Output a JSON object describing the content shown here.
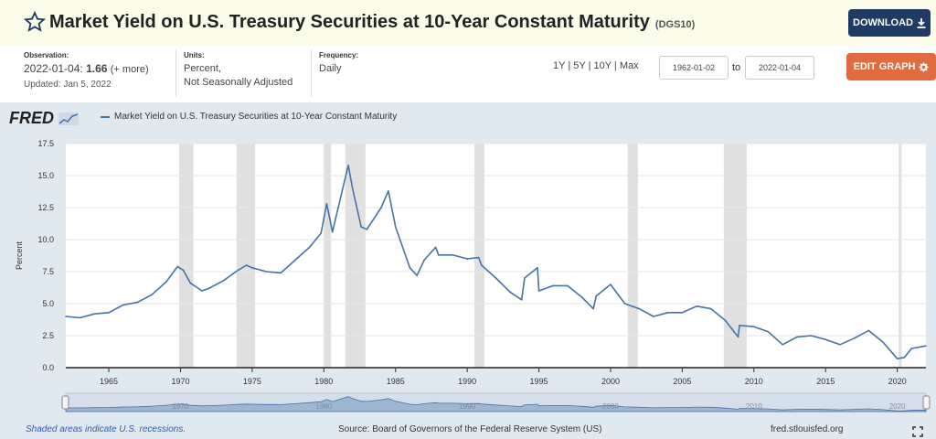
{
  "header": {
    "title": "Market Yield on U.S. Treasury Securities at 10-Year Constant Maturity",
    "series_id": "(DGS10)",
    "download_label": "DOWNLOAD",
    "icons": {
      "star": "star-icon",
      "download": "download-icon"
    }
  },
  "meta": {
    "observation_label": "Observation:",
    "observation_date": "2022-01-04:",
    "observation_value": "1.66",
    "observation_more": "(+ more)",
    "updated": "Updated: Jan 5, 2022",
    "units_label": "Units:",
    "units_line1": "Percent,",
    "units_line2": "Not Seasonally Adjusted",
    "frequency_label": "Frequency:",
    "frequency_value": "Daily"
  },
  "controls": {
    "range_links": [
      "1Y",
      "5Y",
      "10Y",
      "Max"
    ],
    "start_date": "1962-01-02",
    "to_label": "to",
    "end_date": "2022-01-04",
    "edit_label": "EDIT GRAPH",
    "icons": {
      "edit": "gear-icon"
    }
  },
  "chart_data": {
    "type": "line",
    "title": "",
    "xlabel": "",
    "ylabel": "Percent",
    "xlim": [
      1962,
      2022
    ],
    "ylim": [
      0,
      17.5
    ],
    "x_ticks": [
      "1965",
      "1970",
      "1975",
      "1980",
      "1985",
      "1990",
      "1995",
      "2000",
      "2005",
      "2010",
      "2015",
      "2020"
    ],
    "y_ticks": [
      "0.0",
      "2.5",
      "5.0",
      "7.5",
      "10.0",
      "12.5",
      "15.0",
      "17.5"
    ],
    "legend": "top-left",
    "grid": true,
    "series": [
      {
        "name": "Market Yield on U.S. Treasury Securities at 10-Year Constant Maturity",
        "color": "#4572a7",
        "x": [
          1962,
          1963,
          1964,
          1965,
          1966,
          1967,
          1968,
          1969,
          1969.8,
          1970.2,
          1970.7,
          1971.5,
          1972,
          1973,
          1974,
          1974.6,
          1975,
          1976,
          1977,
          1978,
          1979,
          1979.8,
          1980.2,
          1980.6,
          1981,
          1981.7,
          1982,
          1982.6,
          1983,
          1984,
          1984.5,
          1985,
          1986,
          1986.5,
          1987,
          1987.8,
          1988,
          1989,
          1990,
          1990.8,
          1991,
          1992,
          1993,
          1993.8,
          1994,
          1994.9,
          1995,
          1996,
          1997,
          1998,
          1998.8,
          1999,
          2000,
          2001,
          2002,
          2003,
          2004,
          2005,
          2006,
          2007,
          2008,
          2008.9,
          2009,
          2010,
          2011,
          2012,
          2013,
          2014,
          2015,
          2016,
          2017,
          2018,
          2019,
          2020,
          2020.5,
          2021,
          2022
        ],
        "values": [
          4.0,
          3.9,
          4.2,
          4.3,
          4.9,
          5.1,
          5.7,
          6.7,
          7.9,
          7.6,
          6.6,
          6.0,
          6.2,
          6.8,
          7.6,
          8.0,
          7.8,
          7.5,
          7.4,
          8.4,
          9.4,
          10.5,
          12.8,
          10.6,
          12.5,
          15.8,
          14.0,
          11.0,
          10.8,
          12.5,
          13.8,
          11.0,
          7.8,
          7.2,
          8.4,
          9.4,
          8.8,
          8.8,
          8.5,
          8.6,
          8.0,
          7.0,
          5.9,
          5.3,
          7.0,
          7.8,
          6.0,
          6.4,
          6.4,
          5.5,
          4.6,
          5.6,
          6.5,
          5.0,
          4.6,
          4.0,
          4.3,
          4.3,
          4.8,
          4.6,
          3.7,
          2.4,
          3.3,
          3.2,
          2.8,
          1.8,
          2.4,
          2.5,
          2.2,
          1.8,
          2.3,
          2.9,
          2.0,
          0.7,
          0.8,
          1.5,
          1.7
        ]
      }
    ],
    "recessions": [
      [
        1969.9,
        1970.9
      ],
      [
        1973.9,
        1975.2
      ],
      [
        1980.0,
        1980.5
      ],
      [
        1981.5,
        1982.9
      ],
      [
        1990.5,
        1991.2
      ],
      [
        2001.2,
        2001.9
      ],
      [
        2007.9,
        2009.5
      ],
      [
        2020.1,
        2020.3
      ]
    ]
  },
  "navigator": {
    "labels": [
      "1970",
      "1980",
      "1990",
      "2000",
      "2010",
      "2020"
    ]
  },
  "footer": {
    "recession_note": "Shaded areas indicate U.S. recessions.",
    "source": "Source: Board of Governors of the Federal Reserve System (US)",
    "site": "fred.stlouisfed.org",
    "icons": {
      "fullscreen": "fullscreen-icon"
    }
  },
  "logo": "FRED",
  "colors": {
    "series": "#4572a7",
    "download": "#1f3b63",
    "edit": "#e06b3f",
    "recession": "#e0e0e0",
    "chart_bg": "#e1e9f0"
  }
}
